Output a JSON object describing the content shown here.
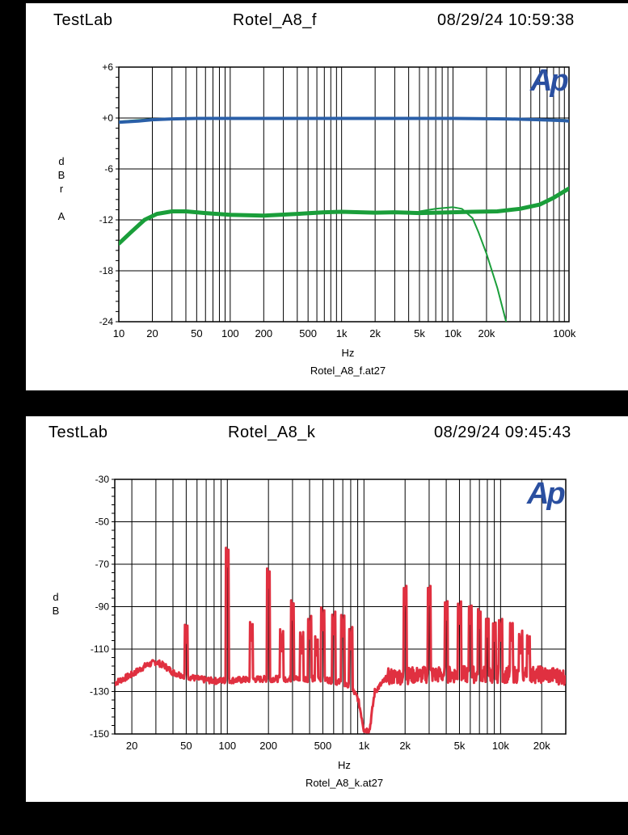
{
  "charts": [
    {
      "header": {
        "left": "TestLab",
        "center": "Rotel_A8_f",
        "right": "08/29/24 10:59:38"
      },
      "chart_data": {
        "type": "line",
        "xscale": "log",
        "xlim": [
          10,
          110000
        ],
        "ylim": [
          -24,
          6
        ],
        "yticks": [
          "+6",
          "+0",
          "-6",
          "-12",
          "-18",
          "-24"
        ],
        "xticks": [
          "10",
          "20",
          "50",
          "100",
          "200",
          "500",
          "1k",
          "2k",
          "5k",
          "10k",
          "20k",
          "100k"
        ],
        "ylabel_lines": [
          "d",
          "B",
          "r",
          "",
          "A"
        ],
        "xlabel": "Hz",
        "filename": "Rotel_A8_f.at27",
        "logo": "Ap",
        "series": [
          {
            "color": "#1a9e3a",
            "width": 2,
            "points": [
              [
                10,
                -0.4
              ],
              [
                20,
                -0.1
              ],
              [
                50,
                0
              ],
              [
                20000,
                0
              ],
              [
                100000,
                -0.2
              ],
              [
                110000,
                -0.3
              ]
            ]
          },
          {
            "color": "#2a5fa8",
            "width": 4,
            "points": [
              [
                10,
                -0.5
              ],
              [
                15,
                -0.35
              ],
              [
                20,
                -0.2
              ],
              [
                30,
                -0.1
              ],
              [
                50,
                -0.05
              ],
              [
                10000,
                -0.05
              ],
              [
                30000,
                -0.1
              ],
              [
                60000,
                -0.2
              ],
              [
                100000,
                -0.3
              ],
              [
                110000,
                -0.35
              ]
            ]
          },
          {
            "color": "#1a9e3a",
            "width": 2,
            "points": [
              [
                5000,
                -11
              ],
              [
                7000,
                -10.7
              ],
              [
                10000,
                -10.5
              ],
              [
                12000,
                -10.7
              ],
              [
                15000,
                -11.8
              ],
              [
                17000,
                -13.5
              ],
              [
                20000,
                -16
              ],
              [
                25000,
                -20
              ],
              [
                30000,
                -24
              ]
            ]
          },
          {
            "color": "#1a9e3a",
            "width": 5,
            "points": [
              [
                10,
                -14.8
              ],
              [
                13,
                -13.4
              ],
              [
                17,
                -12
              ],
              [
                22,
                -11.3
              ],
              [
                30,
                -11
              ],
              [
                40,
                -11
              ],
              [
                60,
                -11.2
              ],
              [
                100,
                -11.4
              ],
              [
                200,
                -11.5
              ],
              [
                400,
                -11.3
              ],
              [
                700,
                -11.1
              ],
              [
                1000,
                -11.05
              ],
              [
                2000,
                -11.15
              ],
              [
                3000,
                -11.1
              ],
              [
                5000,
                -11.2
              ],
              [
                7000,
                -11.15
              ],
              [
                10000,
                -11.1
              ],
              [
                15000,
                -11.05
              ],
              [
                25000,
                -11
              ],
              [
                40000,
                -10.7
              ],
              [
                60000,
                -10.2
              ],
              [
                80000,
                -9.4
              ],
              [
                110000,
                -8.3
              ]
            ]
          }
        ]
      }
    },
    {
      "header": {
        "left": "TestLab",
        "center": "Rotel_A8_k",
        "right": "08/29/24 09:45:43"
      },
      "chart_data": {
        "type": "line",
        "xscale": "log",
        "xlim": [
          15,
          30000
        ],
        "ylim": [
          -150,
          -30
        ],
        "yticks": [
          "-30",
          "-50",
          "-70",
          "-90",
          "-110",
          "-130",
          "-150"
        ],
        "xticks": [
          "20",
          "50",
          "100",
          "200",
          "500",
          "1k",
          "2k",
          "5k",
          "10k",
          "20k"
        ],
        "ylabel_lines": [
          "d",
          "B"
        ],
        "xlabel": "Hz",
        "filename": "Rotel_A8_k.at27",
        "logo": "Ap",
        "series": [
          {
            "color": "#e03040",
            "width": 3,
            "noise_floor": [
              [
                15,
                -126
              ],
              [
                20,
                -122
              ],
              [
                25,
                -118
              ],
              [
                30,
                -116
              ],
              [
                35,
                -118
              ],
              [
                40,
                -121
              ],
              [
                45,
                -122
              ],
              [
                60,
                -124
              ],
              [
                80,
                -125
              ],
              [
                200,
                -124
              ],
              [
                500,
                -124
              ],
              [
                700,
                -126
              ],
              [
                800,
                -128
              ],
              [
                900,
                -133
              ],
              [
                950,
                -140
              ],
              [
                1000,
                -148
              ],
              [
                1100,
                -148
              ],
              [
                1200,
                -130
              ],
              [
                1500,
                -123
              ],
              [
                3000,
                -122
              ],
              [
                10000,
                -122
              ],
              [
                20000,
                -122
              ],
              [
                30000,
                -123
              ]
            ],
            "peaks": [
              [
                50,
                -107
              ],
              [
                100,
                -71
              ],
              [
                150,
                -106
              ],
              [
                200,
                -81
              ],
              [
                250,
                -111
              ],
              [
                300,
                -96
              ],
              [
                350,
                -112
              ],
              [
                400,
                -105
              ],
              [
                450,
                -113
              ],
              [
                500,
                -101
              ],
              [
                600,
                -103
              ],
              [
                700,
                -104
              ],
              [
                800,
                -110
              ],
              [
                2000,
                -89
              ],
              [
                3000,
                -89
              ],
              [
                4000,
                -96
              ],
              [
                5000,
                -98
              ],
              [
                6000,
                -98
              ],
              [
                7000,
                -100
              ],
              [
                8000,
                -104
              ],
              [
                9000,
                -106
              ],
              [
                10000,
                -106
              ],
              [
                12000,
                -106
              ],
              [
                14000,
                -112
              ],
              [
                16000,
                -112
              ]
            ]
          }
        ]
      }
    }
  ]
}
